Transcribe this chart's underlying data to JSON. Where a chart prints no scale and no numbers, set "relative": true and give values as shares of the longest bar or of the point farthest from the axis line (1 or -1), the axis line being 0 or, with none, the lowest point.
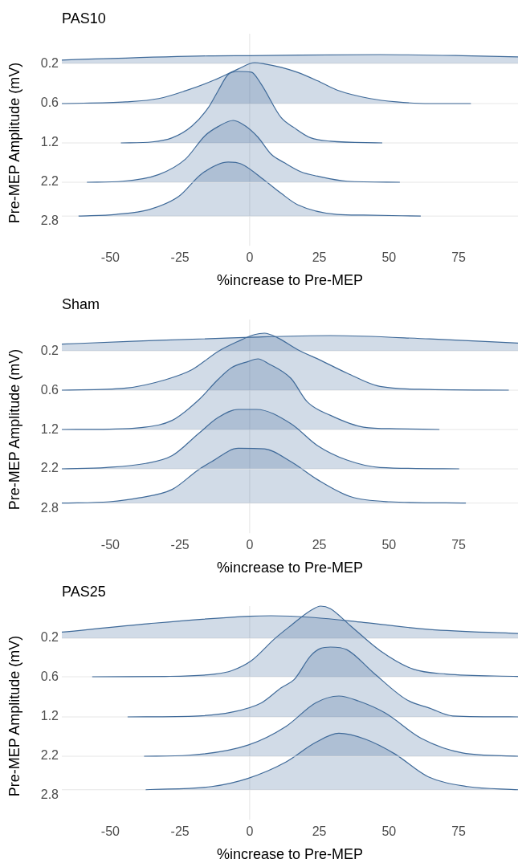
{
  "chart_data": [
    {
      "type": "area",
      "title": "PAS10",
      "relative": true,
      "xlim": [
        -67.4,
        96.3
      ],
      "xticks": [
        -50,
        -25,
        0,
        25,
        50,
        75
      ],
      "tick_labels": false,
      "series": [
        {
          "name": "0.2",
          "color": "#3f6a99",
          "x": [
            -67.4,
            -14.8,
            0,
            46.8,
            76.4,
            96.3
          ],
          "values": [
            0.38,
            0.85,
            0.88,
            1,
            0.88,
            0.73
          ]
        }
      ]
    },
    {
      "type": "area",
      "relative": true,
      "xlim": [
        -67.4,
        96.3
      ],
      "xticks": [
        -50,
        -25,
        0,
        25,
        50,
        75
      ],
      "tick_labels": false,
      "series": [
        {
          "name": "0.6",
          "color": "#3f6a99",
          "x": [
            -67.4,
            -44.4,
            -32.6,
            -23.1,
            -12.4,
            -4.1,
            1.8,
            5.3,
            11.3,
            17.2,
            24.3,
            31.4,
            43.2,
            52.7,
            64.6,
            79.4
          ],
          "values": [
            0,
            0.042,
            0.123,
            0.311,
            0.583,
            0.845,
            1,
            0.969,
            0.885,
            0.763,
            0.558,
            0.329,
            0.123,
            0.042,
            0,
            0
          ]
        }
      ]
    },
    {
      "type": "area",
      "relative": true,
      "xlim": [
        -67.4,
        96.3
      ],
      "xticks": [
        -50,
        -25,
        0,
        25,
        50,
        75
      ],
      "tick_labels": false,
      "series": [
        {
          "name": "1.2",
          "color": "#3f6a99",
          "x": [
            -46.2,
            -35,
            -27.8,
            -20.7,
            -14.8,
            -11.3,
            -7.7,
            -4.1,
            0.6,
            4.1,
            11.3,
            16,
            21.9,
            29,
            47.6
          ],
          "values": [
            0,
            0.014,
            0.071,
            0.236,
            0.495,
            0.731,
            0.958,
            1,
            0.991,
            0.825,
            0.354,
            0.212,
            0.071,
            0.024,
            0
          ]
        }
      ]
    },
    {
      "type": "area",
      "relative": true,
      "xlim": [
        -67.4,
        96.3
      ],
      "xticks": [
        -50,
        -25,
        0,
        25,
        50,
        75
      ],
      "tick_labels": false,
      "series": [
        {
          "name": "2.2",
          "color": "#3f6a99",
          "x": [
            -58.4,
            -45.6,
            -32.6,
            -23.1,
            -16,
            -11.3,
            -5.9,
            -1.8,
            3,
            7.7,
            12.4,
            18.4,
            24.3,
            35,
            53.9
          ],
          "values": [
            0,
            0.016,
            0.125,
            0.372,
            0.754,
            0.901,
            1,
            0.918,
            0.727,
            0.454,
            0.317,
            0.169,
            0.098,
            0.016,
            0
          ]
        }
      ]
    },
    {
      "type": "area",
      "xlabel": "%increase to Pre-MEP",
      "ylabel": "Pre-MEP Amplitude (mV)",
      "relative": true,
      "xlim": [
        -67.4,
        96.3
      ],
      "xticks": [
        -50,
        -25,
        0,
        25,
        50,
        75
      ],
      "ref_lines": [
        {
          "axis": "x",
          "value": 0,
          "color": "#e4e4e4"
        }
      ],
      "series": [
        {
          "name": "2.8",
          "color": "#3f6a99",
          "x": [
            -61.4,
            -48,
            -36.1,
            -25.5,
            -17.2,
            -7.7,
            -3,
            5.3,
            11.3,
            17.2,
            31.4,
            40.9,
            61.4
          ],
          "values": [
            0,
            0.031,
            0.12,
            0.361,
            0.783,
            1,
            0.964,
            0.663,
            0.421,
            0.211,
            0.031,
            0.018,
            0
          ]
        }
      ]
    },
    {
      "type": "area",
      "title": "Sham",
      "relative": true,
      "xlim": [
        -67.4,
        96.3
      ],
      "xticks": [
        -50,
        -25,
        0,
        25,
        50,
        75
      ],
      "tick_labels": false,
      "series": [
        {
          "name": "0.2",
          "color": "#3f6a99",
          "x": [
            -67.4,
            -42.1,
            0,
            29,
            64.6,
            96.3
          ],
          "values": [
            0.44,
            0.62,
            0.89,
            1,
            0.78,
            0.51
          ]
        }
      ]
    },
    {
      "type": "area",
      "relative": true,
      "xlim": [
        -67.4,
        96.3
      ],
      "xticks": [
        -50,
        -25,
        0,
        25,
        50,
        75
      ],
      "tick_labels": false,
      "series": [
        {
          "name": "0.6",
          "color": "#3f6a99",
          "x": [
            -67.4,
            -44.4,
            -30.2,
            -20.7,
            -11.3,
            -4.1,
            1.8,
            5.3,
            10.1,
            17.2,
            25.5,
            34.9,
            46.8,
            64.6,
            93
          ],
          "values": [
            0,
            0.036,
            0.183,
            0.358,
            0.681,
            0.858,
            0.975,
            1,
            0.917,
            0.711,
            0.523,
            0.3,
            0.064,
            0.012,
            0
          ]
        }
      ]
    },
    {
      "type": "area",
      "relative": true,
      "xlim": [
        -67.4,
        96.3
      ],
      "xticks": [
        -50,
        -25,
        0,
        25,
        50,
        75
      ],
      "tick_labels": false,
      "series": [
        {
          "name": "1.2",
          "color": "#3f6a99",
          "x": [
            -67.4,
            -50.4,
            -39.7,
            -27.8,
            -18.4,
            -11.3,
            -6.5,
            -0.6,
            3,
            6.5,
            14.8,
            20.7,
            29,
            40.9,
            52.7,
            68.1
          ],
          "values": [
            0,
            0.005,
            0.024,
            0.129,
            0.414,
            0.71,
            0.876,
            0.962,
            1,
            0.938,
            0.724,
            0.39,
            0.2,
            0.033,
            0.01,
            0
          ]
        }
      ]
    },
    {
      "type": "area",
      "relative": true,
      "xlim": [
        -67.4,
        96.3
      ],
      "xticks": [
        -50,
        -25,
        0,
        25,
        50,
        75
      ],
      "tick_labels": false,
      "series": [
        {
          "name": "2.2",
          "color": "#3f6a99",
          "x": [
            -67.4,
            -51.5,
            -37.3,
            -27.8,
            -18.4,
            -11.3,
            -4.1,
            2.4,
            14.8,
            24.3,
            34.9,
            46.8,
            75.2
          ],
          "values": [
            0,
            0.023,
            0.091,
            0.222,
            0.591,
            0.864,
            1,
            1,
            0.761,
            0.393,
            0.148,
            0.023,
            0
          ]
        }
      ]
    },
    {
      "type": "area",
      "xlabel": "%increase to Pre-MEP",
      "ylabel": "Pre-MEP Amplitude (mV)",
      "relative": true,
      "xlim": [
        -67.4,
        96.3
      ],
      "xticks": [
        -50,
        -25,
        0,
        25,
        50,
        75
      ],
      "ref_lines": [
        {
          "axis": "x",
          "value": 0,
          "color": "#e4e4e4"
        }
      ],
      "series": [
        {
          "name": "2.8",
          "color": "#3f6a99",
          "x": [
            -67.4,
            -50.4,
            -39.7,
            -27.8,
            -18.4,
            -13.6,
            -4.1,
            5.3,
            14.8,
            24.3,
            36.1,
            50.4,
            77.6
          ],
          "values": [
            0,
            0.024,
            0.095,
            0.25,
            0.608,
            0.756,
            1,
            0.988,
            0.756,
            0.429,
            0.119,
            0.024,
            0
          ]
        }
      ]
    },
    {
      "type": "area",
      "title": "PAS25",
      "relative": true,
      "xlim": [
        -67.4,
        96.3
      ],
      "xticks": [
        -50,
        -25,
        0,
        25,
        50,
        75
      ],
      "tick_labels": false,
      "series": [
        {
          "name": "0.2",
          "color": "#3f6a99",
          "x": [
            -67.4,
            -36.1,
            0,
            7.7,
            23.1,
            40.9,
            64.6,
            96.3
          ],
          "values": [
            0.27,
            0.65,
            0.98,
            1,
            0.92,
            0.7,
            0.39,
            0.21
          ]
        }
      ]
    },
    {
      "type": "area",
      "relative": true,
      "xlim": [
        -67.4,
        96.3
      ],
      "xticks": [
        -50,
        -25,
        0,
        25,
        50,
        75
      ],
      "tick_labels": false,
      "series": [
        {
          "name": "0.6",
          "color": "#3f6a99",
          "x": [
            -56.5,
            -30.2,
            -12.4,
            -6.5,
            0.6,
            8.9,
            14.8,
            21.9,
            25.5,
            29,
            36.1,
            46.8,
            58.6,
            70.5,
            96.3
          ],
          "values": [
            0,
            0.005,
            0.038,
            0.085,
            0.227,
            0.536,
            0.725,
            0.938,
            1,
            0.962,
            0.725,
            0.37,
            0.109,
            0.038,
            0.005
          ]
        }
      ]
    },
    {
      "type": "area",
      "relative": true,
      "xlim": [
        -67.4,
        96.3
      ],
      "xticks": [
        -50,
        -25,
        0,
        25,
        50,
        75
      ],
      "tick_labels": false,
      "series": [
        {
          "name": "1.2",
          "color": "#3f6a99",
          "x": [
            -43.8,
            -18.4,
            -6.5,
            4.1,
            11.3,
            16,
            21.9,
            25.5,
            29,
            34.9,
            44.4,
            56.3,
            64.6,
            72.9,
            96.3
          ],
          "values": [
            0,
            0.014,
            0.067,
            0.198,
            0.416,
            0.536,
            0.875,
            0.981,
            1,
            0.961,
            0.633,
            0.247,
            0.125,
            0.014,
            0
          ]
        }
      ]
    },
    {
      "type": "area",
      "relative": true,
      "xlim": [
        -67.4,
        96.3
      ],
      "xticks": [
        -50,
        -25,
        0,
        25,
        50,
        75
      ],
      "tick_labels": false,
      "series": [
        {
          "name": "2.2",
          "color": "#3f6a99",
          "x": [
            -37.9,
            -21.9,
            -0.6,
            13,
            23.7,
            32,
            39.1,
            48.6,
            61.6,
            76.4,
            96.3
          ],
          "values": [
            0,
            0.017,
            0.185,
            0.494,
            0.887,
            1,
            0.916,
            0.719,
            0.297,
            0.056,
            0
          ]
        }
      ]
    },
    {
      "type": "area",
      "xlabel": "%increase to Pre-MEP",
      "ylabel": "Pre-MEP Amplitude (mV)",
      "relative": true,
      "xlim": [
        -67.4,
        96.3
      ],
      "xticks": [
        -50,
        -25,
        0,
        25,
        50,
        75
      ],
      "ref_lines": [
        {
          "axis": "x",
          "value": 0,
          "color": "#e4e4e4"
        }
      ],
      "series": [
        {
          "name": "2.8",
          "color": "#3f6a99",
          "x": [
            -37.3,
            -13.6,
            -0.6,
            13,
            23.7,
            32,
            41.5,
            52.1,
            64,
            78.2,
            96.3
          ],
          "values": [
            0,
            0.057,
            0.202,
            0.491,
            0.838,
            1,
            0.896,
            0.635,
            0.232,
            0.057,
            0
          ]
        }
      ]
    }
  ]
}
